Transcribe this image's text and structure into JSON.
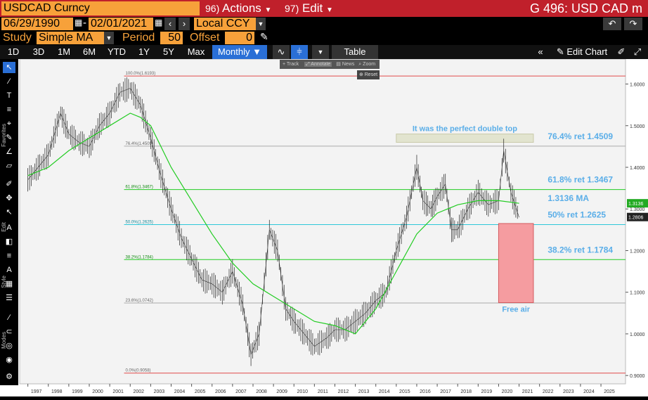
{
  "header": {
    "security": "USDCAD Curncy",
    "actions": {
      "num": "96)",
      "label": "Actions"
    },
    "edit": {
      "num": "97)",
      "label": "Edit"
    },
    "title": "G 496: USD CAD m"
  },
  "range": {
    "start": "06/29/1990",
    "sep": "-",
    "end": "02/01/2021",
    "currency": "Local CCY"
  },
  "study": {
    "label": "Study",
    "value": "Simple MA",
    "period_label": "Period",
    "period": "50",
    "offset_label": "Offset",
    "offset": "0"
  },
  "timeframes": [
    "1D",
    "3D",
    "1M",
    "6M",
    "YTD",
    "1Y",
    "5Y",
    "Max"
  ],
  "frequency": "Monthly ▼",
  "table_label": "Table",
  "edit_chart_label": "Edit Chart",
  "float_tools": {
    "track": "Track",
    "annotate": "Annotate",
    "news": "News",
    "zoom": "Zoom",
    "reset": "Reset"
  },
  "toolbar_labels": {
    "favorites": "Favorites",
    "edit": "Edit",
    "style": "Style",
    "modes": "Modes"
  },
  "colors": {
    "header_red": "#c0202b",
    "accent_orange": "#f7a13a",
    "ma_green": "#22cc22",
    "fib_label_blue": "#5aaee8",
    "free_air_fill": "#f59ca0"
  },
  "chart_data": {
    "type": "line",
    "x_years": [
      "1997",
      "1998",
      "1999",
      "2000",
      "2001",
      "2002",
      "2003",
      "2004",
      "2005",
      "2006",
      "2007",
      "2008",
      "2009",
      "2010",
      "2011",
      "2012",
      "2013",
      "2014",
      "2015",
      "2016",
      "2017",
      "2018",
      "2019",
      "2020",
      "2021",
      "2022",
      "2023",
      "2024",
      "2025"
    ],
    "ylim": [
      0.88,
      1.66
    ],
    "y_ticks": [
      "1.6000",
      "1.5000",
      "1.4000",
      "1.3000",
      "1.2000",
      "1.1000",
      "1.0000",
      "0.9000"
    ],
    "price_series": {
      "x": [
        1997.0,
        1997.5,
        1998.0,
        1998.6,
        1999.0,
        1999.5,
        2000.0,
        2000.5,
        2001.0,
        2001.5,
        2002.0,
        2002.5,
        2003.0,
        2003.5,
        2004.0,
        2004.5,
        2005.0,
        2005.5,
        2006.0,
        2006.5,
        2007.0,
        2007.5,
        2007.9,
        2008.3,
        2008.8,
        2009.2,
        2009.6,
        2010.0,
        2010.5,
        2011.0,
        2011.6,
        2012.0,
        2012.5,
        2013.0,
        2013.5,
        2014.0,
        2014.5,
        2015.0,
        2015.5,
        2016.0,
        2016.3,
        2016.7,
        2017.0,
        2017.4,
        2017.7,
        2018.0,
        2018.5,
        2019.0,
        2019.5,
        2020.0,
        2020.25,
        2020.6,
        2021.0
      ],
      "y": [
        1.37,
        1.4,
        1.43,
        1.53,
        1.48,
        1.46,
        1.45,
        1.5,
        1.53,
        1.58,
        1.59,
        1.55,
        1.47,
        1.38,
        1.3,
        1.23,
        1.18,
        1.13,
        1.12,
        1.1,
        1.15,
        1.07,
        0.95,
        1.0,
        1.25,
        1.2,
        1.06,
        1.03,
        1.0,
        0.97,
        0.99,
        1.01,
        1.01,
        1.03,
        1.05,
        1.08,
        1.1,
        1.2,
        1.28,
        1.4,
        1.32,
        1.3,
        1.33,
        1.36,
        1.25,
        1.25,
        1.3,
        1.34,
        1.31,
        1.32,
        1.44,
        1.34,
        1.28
      ]
    },
    "ma_series": {
      "name": "1.3136 MA",
      "x": [
        1997.0,
        1998.0,
        1999.0,
        2000.0,
        2001.0,
        2002.0,
        2002.5,
        2003.0,
        2004.0,
        2005.0,
        2006.0,
        2007.0,
        2008.0,
        2009.0,
        2010.0,
        2011.0,
        2012.0,
        2013.0,
        2014.0,
        2015.0,
        2016.0,
        2017.0,
        2018.0,
        2019.0,
        2020.0,
        2021.0
      ],
      "y": [
        1.38,
        1.4,
        1.44,
        1.47,
        1.5,
        1.53,
        1.52,
        1.5,
        1.4,
        1.32,
        1.24,
        1.17,
        1.12,
        1.09,
        1.06,
        1.03,
        1.02,
        1.0,
        1.06,
        1.15,
        1.24,
        1.29,
        1.31,
        1.32,
        1.32,
        1.3136
      ]
    },
    "fib_levels": [
      {
        "label": "100.0%(1.6193)",
        "value": 1.6193,
        "color": "#e24b4b",
        "right_label": ""
      },
      {
        "label": "76.4%(1.4509)",
        "value": 1.4509,
        "color": "#aaaaaa",
        "right_label": "76.4% ret 1.4509"
      },
      {
        "label": "61.8%(1.3467)",
        "value": 1.3467,
        "color": "#22cc22",
        "right_label": "61.8% ret 1.3467"
      },
      {
        "label": "50.0%(1.2625)",
        "value": 1.2625,
        "color": "#2ec7d8",
        "right_label": "50% ret 1.2625"
      },
      {
        "label": "38.2%(1.1784)",
        "value": 1.1784,
        "color": "#22cc22",
        "right_label": "38.2% ret 1.1784"
      },
      {
        "label": "23.6%(1.0742)",
        "value": 1.0742,
        "color": "#aaaaaa",
        "right_label": ""
      },
      {
        "label": "0.0%(0.9058)",
        "value": 0.9058,
        "color": "#e24b4b",
        "right_label": ""
      }
    ],
    "ma_label": "1.3136 MA",
    "price_tags": [
      "1.3136",
      "1.2806"
    ],
    "annotation_double_top": "It was the perfect double top",
    "annotation_free_air": "Free air",
    "double_top_box": {
      "x0": 2015.0,
      "x1": 2021.7,
      "y0": 1.46,
      "y1": 1.48
    },
    "free_air_box": {
      "x0": 2020.0,
      "x1": 2021.7,
      "y0": 1.075,
      "y1": 1.265
    }
  }
}
